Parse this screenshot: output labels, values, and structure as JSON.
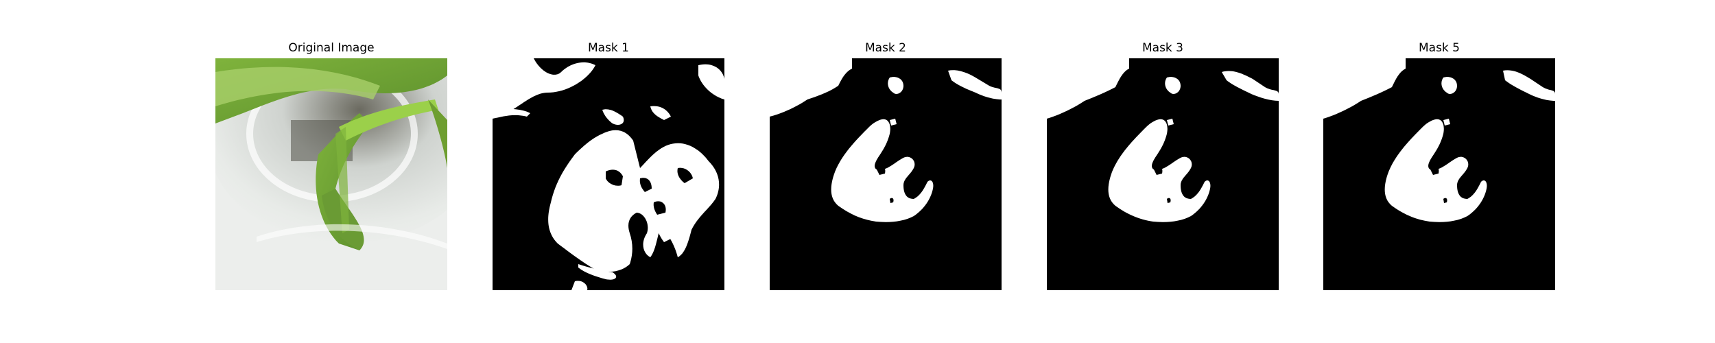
{
  "panels": [
    {
      "title": "Original Image"
    },
    {
      "title": "Mask 1"
    },
    {
      "title": "Mask 2"
    },
    {
      "title": "Mask 3"
    },
    {
      "title": "Mask 5"
    }
  ],
  "colors": {
    "mask_bg": "#000000",
    "mask_fg": "#ffffff",
    "leaf_dark": "#5a8a2a",
    "leaf_light": "#8fc04a",
    "pot_white": "#e9ecea"
  }
}
